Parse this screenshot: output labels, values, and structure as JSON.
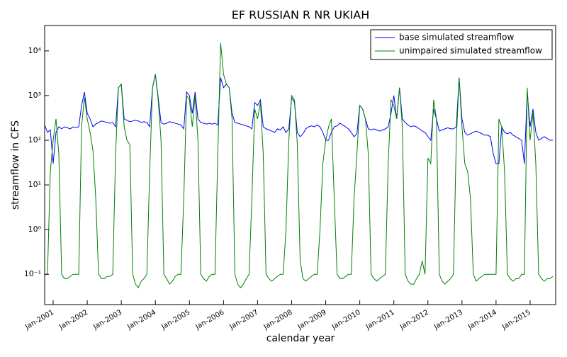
{
  "chart_data": {
    "type": "line",
    "title": "EF RUSSIAN R NR UKIAH",
    "x_label": "calendar year",
    "y_label": "streamflow in CFS",
    "x": [
      "2000-10",
      "2000-11",
      "2000-12",
      "2001-01",
      "2001-02",
      "2001-03",
      "2001-04",
      "2001-05",
      "2001-06",
      "2001-07",
      "2001-08",
      "2001-09",
      "2001-10",
      "2001-11",
      "2001-12",
      "2002-01",
      "2002-02",
      "2002-03",
      "2002-04",
      "2002-05",
      "2002-06",
      "2002-07",
      "2002-08",
      "2002-09",
      "2002-10",
      "2002-11",
      "2002-12",
      "2003-01",
      "2003-02",
      "2003-03",
      "2003-04",
      "2003-05",
      "2003-06",
      "2003-07",
      "2003-08",
      "2003-09",
      "2003-10",
      "2003-11",
      "2003-12",
      "2004-01",
      "2004-02",
      "2004-03",
      "2004-04",
      "2004-05",
      "2004-06",
      "2004-07",
      "2004-08",
      "2004-09",
      "2004-10",
      "2004-11",
      "2004-12",
      "2005-01",
      "2005-02",
      "2005-03",
      "2005-04",
      "2005-05",
      "2005-06",
      "2005-07",
      "2005-08",
      "2005-09",
      "2005-10",
      "2005-11",
      "2005-12",
      "2006-01",
      "2006-02",
      "2006-03",
      "2006-04",
      "2006-05",
      "2006-06",
      "2006-07",
      "2006-08",
      "2006-09",
      "2006-10",
      "2006-11",
      "2006-12",
      "2007-01",
      "2007-02",
      "2007-03",
      "2007-04",
      "2007-05",
      "2007-06",
      "2007-07",
      "2007-08",
      "2007-09",
      "2007-10",
      "2007-11",
      "2007-12",
      "2008-01",
      "2008-02",
      "2008-03",
      "2008-04",
      "2008-05",
      "2008-06",
      "2008-07",
      "2008-08",
      "2008-09",
      "2008-10",
      "2008-11",
      "2008-12",
      "2009-01",
      "2009-02",
      "2009-03",
      "2009-04",
      "2009-05",
      "2009-06",
      "2009-07",
      "2009-08",
      "2009-09",
      "2009-10",
      "2009-11",
      "2009-12",
      "2010-01",
      "2010-02",
      "2010-03",
      "2010-04",
      "2010-05",
      "2010-06",
      "2010-07",
      "2010-08",
      "2010-09",
      "2010-10",
      "2010-11",
      "2010-12",
      "2011-01",
      "2011-02",
      "2011-03",
      "2011-04",
      "2011-05",
      "2011-06",
      "2011-07",
      "2011-08",
      "2011-09",
      "2011-10",
      "2011-11",
      "2011-12",
      "2012-01",
      "2012-02",
      "2012-03",
      "2012-04",
      "2012-05",
      "2012-06",
      "2012-07",
      "2012-08",
      "2012-09",
      "2012-10",
      "2012-11",
      "2012-12",
      "2013-01",
      "2013-02",
      "2013-03",
      "2013-04",
      "2013-05",
      "2013-06",
      "2013-07",
      "2013-08",
      "2013-09",
      "2013-10",
      "2013-11",
      "2013-12",
      "2014-01",
      "2014-02",
      "2014-03",
      "2014-04",
      "2014-05",
      "2014-06",
      "2014-07",
      "2014-08",
      "2014-09",
      "2014-10",
      "2014-11",
      "2014-12",
      "2015-01",
      "2015-02",
      "2015-03",
      "2015-04",
      "2015-05",
      "2015-06",
      "2015-07",
      "2015-08",
      "2015-09"
    ],
    "series": [
      {
        "name": "base simulated streamflow",
        "color": "#0000ff",
        "values": [
          220,
          150,
          170,
          30,
          150,
          200,
          180,
          200,
          190,
          180,
          200,
          190,
          200,
          600,
          1200,
          400,
          300,
          200,
          230,
          250,
          270,
          260,
          250,
          240,
          250,
          200,
          1500,
          1800,
          300,
          280,
          260,
          270,
          280,
          270,
          250,
          260,
          250,
          200,
          1500,
          3000,
          900,
          250,
          230,
          240,
          260,
          250,
          240,
          230,
          220,
          180,
          1200,
          1000,
          400,
          1200,
          300,
          250,
          240,
          230,
          240,
          230,
          240,
          220,
          2500,
          1500,
          1800,
          1500,
          400,
          250,
          240,
          230,
          220,
          210,
          200,
          180,
          700,
          600,
          800,
          200,
          180,
          170,
          160,
          150,
          180,
          170,
          200,
          150,
          180,
          900,
          700,
          150,
          120,
          140,
          180,
          200,
          210,
          200,
          220,
          200,
          150,
          100,
          100,
          150,
          200,
          210,
          240,
          220,
          200,
          180,
          150,
          120,
          140,
          600,
          500,
          300,
          180,
          170,
          180,
          170,
          160,
          170,
          180,
          200,
          400,
          1000,
          300,
          1500,
          300,
          250,
          220,
          200,
          210,
          200,
          180,
          160,
          150,
          120,
          100,
          500,
          300,
          160,
          170,
          180,
          190,
          180,
          180,
          200,
          2500,
          300,
          150,
          130,
          140,
          150,
          160,
          150,
          140,
          130,
          130,
          120,
          50,
          30,
          30,
          200,
          150,
          140,
          150,
          130,
          120,
          110,
          100,
          30,
          1200,
          200,
          500,
          150,
          100,
          110,
          120,
          110,
          100,
          100
        ]
      },
      {
        "name": "unimpaired simulated streamflow",
        "color": "#008000",
        "values": [
          0.1,
          0.1,
          20,
          100,
          300,
          50,
          0.1,
          0.08,
          0.08,
          0.09,
          0.1,
          0.1,
          0.1,
          200,
          900,
          300,
          150,
          60,
          5,
          0.1,
          0.08,
          0.08,
          0.09,
          0.09,
          0.1,
          50,
          1500,
          1800,
          200,
          100,
          80,
          0.1,
          0.06,
          0.05,
          0.07,
          0.08,
          0.1,
          20,
          1500,
          3000,
          800,
          100,
          0.1,
          0.08,
          0.06,
          0.07,
          0.09,
          0.1,
          0.1,
          5,
          1000,
          800,
          200,
          1000,
          100,
          0.1,
          0.08,
          0.07,
          0.09,
          0.1,
          0.1,
          50,
          15000,
          3000,
          1800,
          1500,
          300,
          0.1,
          0.06,
          0.05,
          0.06,
          0.08,
          0.1,
          5,
          500,
          300,
          700,
          50,
          0.1,
          0.08,
          0.07,
          0.08,
          0.09,
          0.1,
          0.1,
          1,
          100,
          1000,
          800,
          80,
          0.2,
          0.08,
          0.07,
          0.08,
          0.09,
          0.1,
          0.1,
          1,
          30,
          100,
          200,
          300,
          5,
          0.1,
          0.08,
          0.08,
          0.09,
          0.1,
          0.1,
          5,
          50,
          600,
          500,
          300,
          50,
          0.1,
          0.08,
          0.07,
          0.08,
          0.09,
          0.1,
          30,
          800,
          600,
          300,
          1500,
          200,
          0.1,
          0.07,
          0.06,
          0.06,
          0.08,
          0.1,
          0.2,
          0.1,
          40,
          30,
          800,
          300,
          0.1,
          0.07,
          0.06,
          0.07,
          0.08,
          0.1,
          100,
          2500,
          200,
          30,
          20,
          5,
          0.1,
          0.07,
          0.08,
          0.09,
          0.1,
          0.1,
          0.1,
          0.1,
          0.1,
          300,
          200,
          20,
          0.1,
          0.08,
          0.07,
          0.08,
          0.08,
          0.1,
          0.1,
          1500,
          100,
          400,
          30,
          0.1,
          0.08,
          0.07,
          0.08,
          0.08,
          0.09
        ]
      }
    ],
    "xlim": [
      "2000-10",
      "2015-09"
    ],
    "xticks": [
      {
        "value": "2001-01",
        "label": "Jan-2001"
      },
      {
        "value": "2002-01",
        "label": "Jan-2002"
      },
      {
        "value": "2003-01",
        "label": "Jan-2003"
      },
      {
        "value": "2004-01",
        "label": "Jan-2004"
      },
      {
        "value": "2005-01",
        "label": "Jan-2005"
      },
      {
        "value": "2006-01",
        "label": "Jan-2006"
      },
      {
        "value": "2007-01",
        "label": "Jan-2007"
      },
      {
        "value": "2008-01",
        "label": "Jan-2008"
      },
      {
        "value": "2009-01",
        "label": "Jan-2009"
      },
      {
        "value": "2010-01",
        "label": "Jan-2010"
      },
      {
        "value": "2011-01",
        "label": "Jan-2011"
      },
      {
        "value": "2012-01",
        "label": "Jan-2012"
      },
      {
        "value": "2013-01",
        "label": "Jan-2013"
      },
      {
        "value": "2014-01",
        "label": "Jan-2014"
      },
      {
        "value": "2015-01",
        "label": "Jan-2015"
      }
    ],
    "ylim": [
      0.021,
      37000
    ],
    "yticks": [
      {
        "value": 0.1,
        "label": "10⁻¹"
      },
      {
        "value": 1,
        "label": "10⁰"
      },
      {
        "value": 10,
        "label": "10¹"
      },
      {
        "value": 100,
        "label": "10²"
      },
      {
        "value": 1000,
        "label": "10³"
      },
      {
        "value": 10000,
        "label": "10⁴"
      }
    ],
    "y_scale": "log",
    "legend": "upper right"
  }
}
